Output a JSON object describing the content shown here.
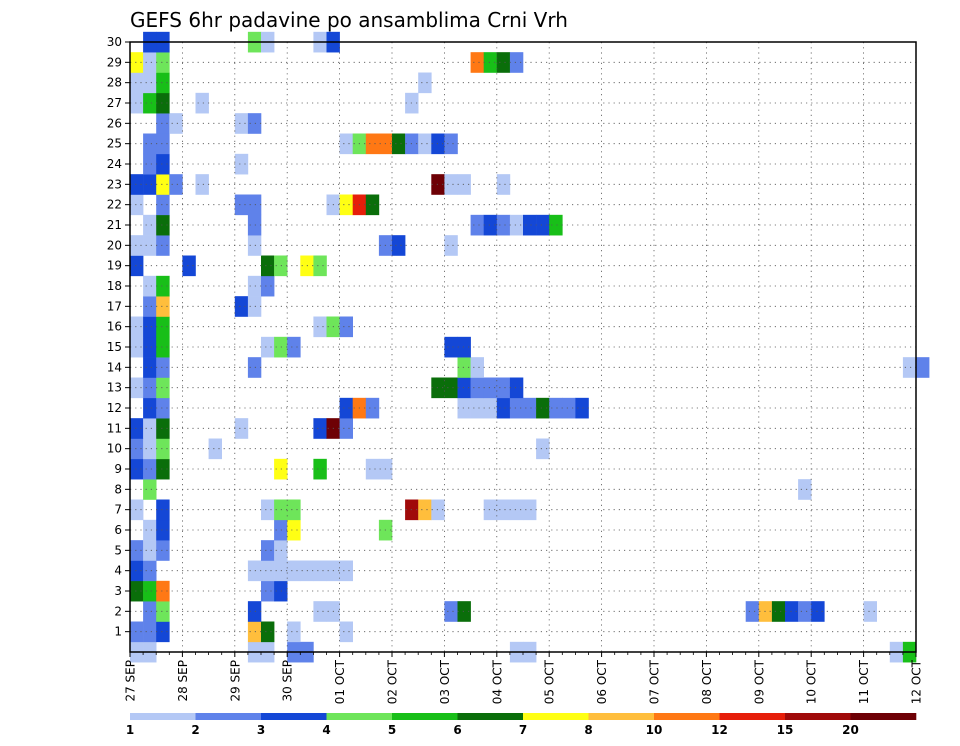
{
  "chart_data": {
    "type": "heatmap",
    "title": "GEFS 6hr padavine po ansamblima Crni Vrh",
    "xlabel": "",
    "ylabel": "",
    "x_ticks": [
      "27 SEP",
      "28 SEP",
      "29 SEP",
      "30 SEP",
      "01 OCT",
      "02 OCT",
      "03 OCT",
      "04 OCT",
      "05 OCT",
      "06 OCT",
      "07 OCT",
      "08 OCT",
      "09 OCT",
      "10 OCT",
      "11 OCT",
      "12 OCT"
    ],
    "x_range": [
      "27 SEP 00Z",
      "12 OCT 00Z"
    ],
    "x_step_hours": 6,
    "y_ticks": [
      "1",
      "2",
      "3",
      "4",
      "5",
      "6",
      "7",
      "8",
      "9",
      "10",
      "11",
      "12",
      "13",
      "14",
      "15",
      "16",
      "17",
      "18",
      "19",
      "20",
      "21",
      "22",
      "23",
      "24",
      "25",
      "26",
      "27",
      "28",
      "29",
      "30"
    ],
    "y_range": [
      0,
      30
    ],
    "grid": true,
    "colorbar": {
      "position": "bottom",
      "boundaries": [
        1,
        2,
        3,
        4,
        5,
        6,
        7,
        8,
        10,
        12,
        15,
        20
      ],
      "labels": [
        "1",
        "2",
        "3",
        "4",
        "5",
        "6",
        "7",
        "8",
        "10",
        "12",
        "15",
        "20"
      ],
      "colors": [
        "#b4c8f5",
        "#5f82ea",
        "#1447d6",
        "#6ee55a",
        "#18bf18",
        "#0a6e0a",
        "#ffff14",
        "#ffbe3c",
        "#ff7814",
        "#e61e0a",
        "#a00a0a",
        "#6e0005"
      ]
    },
    "cells": [
      {
        "member": 0,
        "t": 0,
        "c": 0
      },
      {
        "member": 0,
        "t": 1,
        "c": 0
      },
      {
        "member": 0,
        "t": 9,
        "c": 0
      },
      {
        "member": 0,
        "t": 10,
        "c": 0
      },
      {
        "member": 0,
        "t": 12,
        "c": 1
      },
      {
        "member": 0,
        "t": 13,
        "c": 1
      },
      {
        "member": 0,
        "t": 29,
        "c": 0
      },
      {
        "member": 0,
        "t": 30,
        "c": 0
      },
      {
        "member": 0,
        "t": 58,
        "c": 0
      },
      {
        "member": 0,
        "t": 59,
        "c": 4
      },
      {
        "member": 1,
        "t": 0,
        "c": 1
      },
      {
        "member": 1,
        "t": 1,
        "c": 1
      },
      {
        "member": 1,
        "t": 2,
        "c": 2
      },
      {
        "member": 1,
        "t": 9,
        "c": 7
      },
      {
        "member": 1,
        "t": 10,
        "c": 5
      },
      {
        "member": 1,
        "t": 12,
        "c": 0
      },
      {
        "member": 1,
        "t": 16,
        "c": 0
      },
      {
        "member": 2,
        "t": 1,
        "c": 1
      },
      {
        "member": 2,
        "t": 2,
        "c": 3
      },
      {
        "member": 2,
        "t": 9,
        "c": 2
      },
      {
        "member": 2,
        "t": 14,
        "c": 0
      },
      {
        "member": 2,
        "t": 15,
        "c": 0
      },
      {
        "member": 2,
        "t": 24,
        "c": 1
      },
      {
        "member": 2,
        "t": 25,
        "c": 5
      },
      {
        "member": 2,
        "t": 47,
        "c": 1
      },
      {
        "member": 2,
        "t": 48,
        "c": 7
      },
      {
        "member": 2,
        "t": 49,
        "c": 5
      },
      {
        "member": 2,
        "t": 50,
        "c": 2
      },
      {
        "member": 2,
        "t": 51,
        "c": 1
      },
      {
        "member": 2,
        "t": 52,
        "c": 2
      },
      {
        "member": 2,
        "t": 56,
        "c": 0
      },
      {
        "member": 3,
        "t": 0,
        "c": 5
      },
      {
        "member": 3,
        "t": 1,
        "c": 4
      },
      {
        "member": 3,
        "t": 2,
        "c": 8
      },
      {
        "member": 3,
        "t": 10,
        "c": 1
      },
      {
        "member": 3,
        "t": 11,
        "c": 2
      },
      {
        "member": 4,
        "t": 0,
        "c": 2
      },
      {
        "member": 4,
        "t": 1,
        "c": 1
      },
      {
        "member": 4,
        "t": 9,
        "c": 0
      },
      {
        "member": 4,
        "t": 10,
        "c": 0
      },
      {
        "member": 4,
        "t": 11,
        "c": 0
      },
      {
        "member": 4,
        "t": 12,
        "c": 0
      },
      {
        "member": 4,
        "t": 13,
        "c": 0
      },
      {
        "member": 4,
        "t": 14,
        "c": 0
      },
      {
        "member": 4,
        "t": 15,
        "c": 0
      },
      {
        "member": 4,
        "t": 16,
        "c": 0
      },
      {
        "member": 5,
        "t": 0,
        "c": 1
      },
      {
        "member": 5,
        "t": 1,
        "c": 0
      },
      {
        "member": 5,
        "t": 2,
        "c": 1
      },
      {
        "member": 5,
        "t": 10,
        "c": 1
      },
      {
        "member": 5,
        "t": 11,
        "c": 0
      },
      {
        "member": 6,
        "t": 1,
        "c": 0
      },
      {
        "member": 6,
        "t": 2,
        "c": 2
      },
      {
        "member": 6,
        "t": 11,
        "c": 1
      },
      {
        "member": 6,
        "t": 12,
        "c": 6
      },
      {
        "member": 6,
        "t": 19,
        "c": 3
      },
      {
        "member": 7,
        "t": 0,
        "c": 0
      },
      {
        "member": 7,
        "t": 2,
        "c": 2
      },
      {
        "member": 7,
        "t": 10,
        "c": 0
      },
      {
        "member": 7,
        "t": 11,
        "c": 3
      },
      {
        "member": 7,
        "t": 12,
        "c": 3
      },
      {
        "member": 7,
        "t": 21,
        "c": 10
      },
      {
        "member": 7,
        "t": 22,
        "c": 7
      },
      {
        "member": 7,
        "t": 23,
        "c": 0
      },
      {
        "member": 7,
        "t": 27,
        "c": 0
      },
      {
        "member": 7,
        "t": 28,
        "c": 0
      },
      {
        "member": 7,
        "t": 29,
        "c": 0
      },
      {
        "member": 7,
        "t": 30,
        "c": 0
      },
      {
        "member": 8,
        "t": 1,
        "c": 3
      },
      {
        "member": 8,
        "t": 51,
        "c": 0
      },
      {
        "member": 9,
        "t": 0,
        "c": 2
      },
      {
        "member": 9,
        "t": 1,
        "c": 1
      },
      {
        "member": 9,
        "t": 2,
        "c": 5
      },
      {
        "member": 9,
        "t": 11,
        "c": 6
      },
      {
        "member": 9,
        "t": 14,
        "c": 4
      },
      {
        "member": 9,
        "t": 18,
        "c": 0
      },
      {
        "member": 9,
        "t": 19,
        "c": 0
      },
      {
        "member": 10,
        "t": 0,
        "c": 1
      },
      {
        "member": 10,
        "t": 1,
        "c": 0
      },
      {
        "member": 10,
        "t": 2,
        "c": 3
      },
      {
        "member": 10,
        "t": 6,
        "c": 0
      },
      {
        "member": 10,
        "t": 31,
        "c": 0
      },
      {
        "member": 11,
        "t": 0,
        "c": 2
      },
      {
        "member": 11,
        "t": 1,
        "c": 0
      },
      {
        "member": 11,
        "t": 2,
        "c": 5
      },
      {
        "member": 11,
        "t": 8,
        "c": 0
      },
      {
        "member": 11,
        "t": 14,
        "c": 2
      },
      {
        "member": 11,
        "t": 15,
        "c": 11
      },
      {
        "member": 11,
        "t": 16,
        "c": 1
      },
      {
        "member": 12,
        "t": 1,
        "c": 2
      },
      {
        "member": 12,
        "t": 2,
        "c": 1
      },
      {
        "member": 12,
        "t": 16,
        "c": 2
      },
      {
        "member": 12,
        "t": 17,
        "c": 8
      },
      {
        "member": 12,
        "t": 18,
        "c": 1
      },
      {
        "member": 12,
        "t": 25,
        "c": 0
      },
      {
        "member": 12,
        "t": 26,
        "c": 0
      },
      {
        "member": 12,
        "t": 27,
        "c": 0
      },
      {
        "member": 12,
        "t": 28,
        "c": 2
      },
      {
        "member": 12,
        "t": 29,
        "c": 1
      },
      {
        "member": 12,
        "t": 30,
        "c": 1
      },
      {
        "member": 12,
        "t": 31,
        "c": 5
      },
      {
        "member": 12,
        "t": 32,
        "c": 1
      },
      {
        "member": 12,
        "t": 33,
        "c": 1
      },
      {
        "member": 12,
        "t": 34,
        "c": 2
      },
      {
        "member": 13,
        "t": 0,
        "c": 0
      },
      {
        "member": 13,
        "t": 1,
        "c": 1
      },
      {
        "member": 13,
        "t": 2,
        "c": 3
      },
      {
        "member": 13,
        "t": 23,
        "c": 5
      },
      {
        "member": 13,
        "t": 24,
        "c": 5
      },
      {
        "member": 13,
        "t": 25,
        "c": 2
      },
      {
        "member": 13,
        "t": 26,
        "c": 1
      },
      {
        "member": 13,
        "t": 27,
        "c": 1
      },
      {
        "member": 13,
        "t": 28,
        "c": 1
      },
      {
        "member": 13,
        "t": 29,
        "c": 2
      },
      {
        "member": 14,
        "t": 1,
        "c": 2
      },
      {
        "member": 14,
        "t": 2,
        "c": 1
      },
      {
        "member": 14,
        "t": 9,
        "c": 1
      },
      {
        "member": 14,
        "t": 25,
        "c": 3
      },
      {
        "member": 14,
        "t": 26,
        "c": 0
      },
      {
        "member": 14,
        "t": 59,
        "c": 0
      },
      {
        "member": 14,
        "t": 60,
        "c": 1
      },
      {
        "member": 15,
        "t": 0,
        "c": 0
      },
      {
        "member": 15,
        "t": 1,
        "c": 2
      },
      {
        "member": 15,
        "t": 2,
        "c": 4
      },
      {
        "member": 15,
        "t": 10,
        "c": 0
      },
      {
        "member": 15,
        "t": 11,
        "c": 3
      },
      {
        "member": 15,
        "t": 12,
        "c": 1
      },
      {
        "member": 15,
        "t": 24,
        "c": 2
      },
      {
        "member": 15,
        "t": 25,
        "c": 2
      },
      {
        "member": 16,
        "t": 0,
        "c": 0
      },
      {
        "member": 16,
        "t": 1,
        "c": 2
      },
      {
        "member": 16,
        "t": 2,
        "c": 4
      },
      {
        "member": 16,
        "t": 14,
        "c": 0
      },
      {
        "member": 16,
        "t": 15,
        "c": 3
      },
      {
        "member": 16,
        "t": 16,
        "c": 1
      },
      {
        "member": 17,
        "t": 1,
        "c": 1
      },
      {
        "member": 17,
        "t": 2,
        "c": 7
      },
      {
        "member": 17,
        "t": 8,
        "c": 2
      },
      {
        "member": 17,
        "t": 9,
        "c": 0
      },
      {
        "member": 18,
        "t": 1,
        "c": 0
      },
      {
        "member": 18,
        "t": 2,
        "c": 4
      },
      {
        "member": 18,
        "t": 9,
        "c": 0
      },
      {
        "member": 18,
        "t": 10,
        "c": 1
      },
      {
        "member": 19,
        "t": 0,
        "c": 2
      },
      {
        "member": 19,
        "t": 4,
        "c": 2
      },
      {
        "member": 19,
        "t": 10,
        "c": 5
      },
      {
        "member": 19,
        "t": 11,
        "c": 3
      },
      {
        "member": 19,
        "t": 13,
        "c": 6
      },
      {
        "member": 19,
        "t": 14,
        "c": 3
      },
      {
        "member": 20,
        "t": 0,
        "c": 0
      },
      {
        "member": 20,
        "t": 1,
        "c": 0
      },
      {
        "member": 20,
        "t": 2,
        "c": 1
      },
      {
        "member": 20,
        "t": 9,
        "c": 0
      },
      {
        "member": 20,
        "t": 19,
        "c": 1
      },
      {
        "member": 20,
        "t": 20,
        "c": 2
      },
      {
        "member": 20,
        "t": 24,
        "c": 0
      },
      {
        "member": 21,
        "t": 1,
        "c": 0
      },
      {
        "member": 21,
        "t": 2,
        "c": 5
      },
      {
        "member": 21,
        "t": 9,
        "c": 1
      },
      {
        "member": 21,
        "t": 26,
        "c": 1
      },
      {
        "member": 21,
        "t": 27,
        "c": 2
      },
      {
        "member": 21,
        "t": 28,
        "c": 1
      },
      {
        "member": 21,
        "t": 29,
        "c": 0
      },
      {
        "member": 21,
        "t": 30,
        "c": 2
      },
      {
        "member": 21,
        "t": 31,
        "c": 2
      },
      {
        "member": 21,
        "t": 32,
        "c": 4
      },
      {
        "member": 22,
        "t": 0,
        "c": 0
      },
      {
        "member": 22,
        "t": 2,
        "c": 1
      },
      {
        "member": 22,
        "t": 8,
        "c": 1
      },
      {
        "member": 22,
        "t": 9,
        "c": 1
      },
      {
        "member": 22,
        "t": 15,
        "c": 0
      },
      {
        "member": 22,
        "t": 16,
        "c": 6
      },
      {
        "member": 22,
        "t": 17,
        "c": 9
      },
      {
        "member": 22,
        "t": 18,
        "c": 5
      },
      {
        "member": 23,
        "t": 0,
        "c": 2
      },
      {
        "member": 23,
        "t": 1,
        "c": 2
      },
      {
        "member": 23,
        "t": 2,
        "c": 6
      },
      {
        "member": 23,
        "t": 3,
        "c": 1
      },
      {
        "member": 23,
        "t": 5,
        "c": 0
      },
      {
        "member": 23,
        "t": 23,
        "c": 11
      },
      {
        "member": 23,
        "t": 24,
        "c": 0
      },
      {
        "member": 23,
        "t": 25,
        "c": 0
      },
      {
        "member": 23,
        "t": 28,
        "c": 0
      },
      {
        "member": 24,
        "t": 1,
        "c": 1
      },
      {
        "member": 24,
        "t": 2,
        "c": 2
      },
      {
        "member": 24,
        "t": 8,
        "c": 0
      },
      {
        "member": 25,
        "t": 1,
        "c": 1
      },
      {
        "member": 25,
        "t": 2,
        "c": 1
      },
      {
        "member": 25,
        "t": 16,
        "c": 0
      },
      {
        "member": 25,
        "t": 17,
        "c": 3
      },
      {
        "member": 25,
        "t": 18,
        "c": 8
      },
      {
        "member": 25,
        "t": 19,
        "c": 8
      },
      {
        "member": 25,
        "t": 20,
        "c": 5
      },
      {
        "member": 25,
        "t": 21,
        "c": 1
      },
      {
        "member": 25,
        "t": 22,
        "c": 0
      },
      {
        "member": 25,
        "t": 23,
        "c": 2
      },
      {
        "member": 25,
        "t": 24,
        "c": 1
      },
      {
        "member": 26,
        "t": 2,
        "c": 1
      },
      {
        "member": 26,
        "t": 3,
        "c": 0
      },
      {
        "member": 26,
        "t": 8,
        "c": 0
      },
      {
        "member": 26,
        "t": 9,
        "c": 1
      },
      {
        "member": 27,
        "t": 0,
        "c": 0
      },
      {
        "member": 27,
        "t": 1,
        "c": 4
      },
      {
        "member": 27,
        "t": 2,
        "c": 5
      },
      {
        "member": 27,
        "t": 5,
        "c": 0
      },
      {
        "member": 27,
        "t": 21,
        "c": 0
      },
      {
        "member": 28,
        "t": 0,
        "c": 0
      },
      {
        "member": 28,
        "t": 1,
        "c": 0
      },
      {
        "member": 28,
        "t": 2,
        "c": 4
      },
      {
        "member": 28,
        "t": 22,
        "c": 0
      },
      {
        "member": 29,
        "t": 0,
        "c": 6
      },
      {
        "member": 29,
        "t": 1,
        "c": 0
      },
      {
        "member": 29,
        "t": 2,
        "c": 3
      },
      {
        "member": 29,
        "t": 26,
        "c": 8
      },
      {
        "member": 29,
        "t": 27,
        "c": 4
      },
      {
        "member": 29,
        "t": 28,
        "c": 5
      },
      {
        "member": 29,
        "t": 29,
        "c": 1
      },
      {
        "member": 30,
        "t": 1,
        "c": 2
      },
      {
        "member": 30,
        "t": 2,
        "c": 2
      },
      {
        "member": 30,
        "t": 9,
        "c": 3
      },
      {
        "member": 30,
        "t": 10,
        "c": 0
      },
      {
        "member": 30,
        "t": 14,
        "c": 0
      },
      {
        "member": 30,
        "t": 15,
        "c": 2
      }
    ]
  }
}
